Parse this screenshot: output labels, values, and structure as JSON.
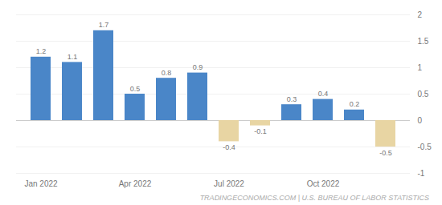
{
  "chart_data": {
    "type": "bar",
    "categories": [
      "Jan 2022",
      null,
      null,
      "Apr 2022",
      null,
      null,
      "Jul 2022",
      null,
      null,
      "Oct 2022",
      null,
      null
    ],
    "values": [
      1.2,
      1.1,
      1.7,
      0.5,
      0.8,
      0.9,
      -0.4,
      -0.1,
      0.3,
      0.4,
      0.2,
      -0.5
    ],
    "colors": [
      "#4a86c8",
      "#4a86c8",
      "#4a86c8",
      "#4a86c8",
      "#4a86c8",
      "#4a86c8",
      "#e8d5a3",
      "#e8d5a3",
      "#4a86c8",
      "#4a86c8",
      "#4a86c8",
      "#e8d5a3"
    ],
    "ylim": [
      -1.0,
      2.0
    ],
    "yticks": [
      -1,
      -0.5,
      0,
      0.5,
      1,
      1.5,
      2
    ],
    "grid": true,
    "data_labels": true,
    "annotations": [
      "TRADINGECONOMICS.COM | U.S. BUREAU OF LABOR STATISTICS"
    ]
  }
}
